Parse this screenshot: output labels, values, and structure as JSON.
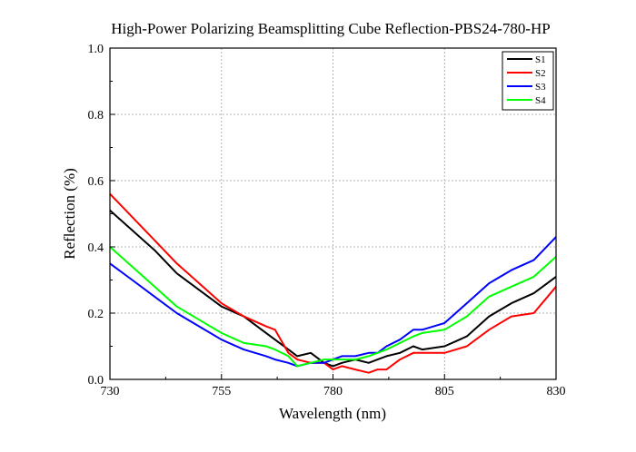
{
  "chart_data": {
    "type": "line",
    "title": "High-Power Polarizing Beamsplitting Cube Reflection-PBS24-780-HP",
    "xlabel": "Wavelength (nm)",
    "ylabel": "Reflection (%)",
    "xlim": [
      730,
      830
    ],
    "ylim": [
      0,
      1.0
    ],
    "xticks": [
      730,
      755,
      780,
      805,
      830
    ],
    "yticks": [
      "0.0",
      "0.2",
      "0.4",
      "0.6",
      "0.8",
      "1.0"
    ],
    "grid": true,
    "legend_position": "top-right",
    "x": [
      730,
      735,
      740,
      745,
      750,
      755,
      760,
      765,
      767,
      770,
      772,
      775,
      778,
      780,
      782,
      785,
      788,
      790,
      792,
      795,
      798,
      800,
      805,
      810,
      815,
      820,
      825,
      830
    ],
    "series": [
      {
        "name": "S1",
        "color": "#000000",
        "values": [
          0.51,
          0.45,
          0.39,
          0.32,
          0.27,
          0.22,
          0.19,
          0.14,
          0.12,
          0.09,
          0.07,
          0.08,
          0.05,
          0.04,
          0.05,
          0.06,
          0.05,
          0.06,
          0.07,
          0.08,
          0.1,
          0.09,
          0.1,
          0.13,
          0.19,
          0.23,
          0.26,
          0.31
        ]
      },
      {
        "name": "S2",
        "color": "#ff0000",
        "values": [
          0.56,
          0.49,
          0.42,
          0.35,
          0.29,
          0.23,
          0.19,
          0.16,
          0.15,
          0.08,
          0.06,
          0.05,
          0.05,
          0.03,
          0.04,
          0.03,
          0.02,
          0.03,
          0.03,
          0.06,
          0.08,
          0.08,
          0.08,
          0.1,
          0.15,
          0.19,
          0.2,
          0.28
        ]
      },
      {
        "name": "S3",
        "color": "#0000ff",
        "values": [
          0.35,
          0.3,
          0.25,
          0.2,
          0.16,
          0.12,
          0.09,
          0.07,
          0.06,
          0.05,
          0.04,
          0.05,
          0.05,
          0.06,
          0.07,
          0.07,
          0.08,
          0.08,
          0.1,
          0.12,
          0.15,
          0.15,
          0.17,
          0.23,
          0.29,
          0.33,
          0.36,
          0.43
        ]
      },
      {
        "name": "S4",
        "color": "#00ff00",
        "values": [
          0.4,
          0.34,
          0.28,
          0.22,
          0.18,
          0.14,
          0.11,
          0.1,
          0.09,
          0.07,
          0.04,
          0.05,
          0.06,
          0.06,
          0.06,
          0.06,
          0.07,
          0.08,
          0.09,
          0.11,
          0.13,
          0.14,
          0.15,
          0.19,
          0.25,
          0.28,
          0.31,
          0.37
        ]
      }
    ]
  }
}
